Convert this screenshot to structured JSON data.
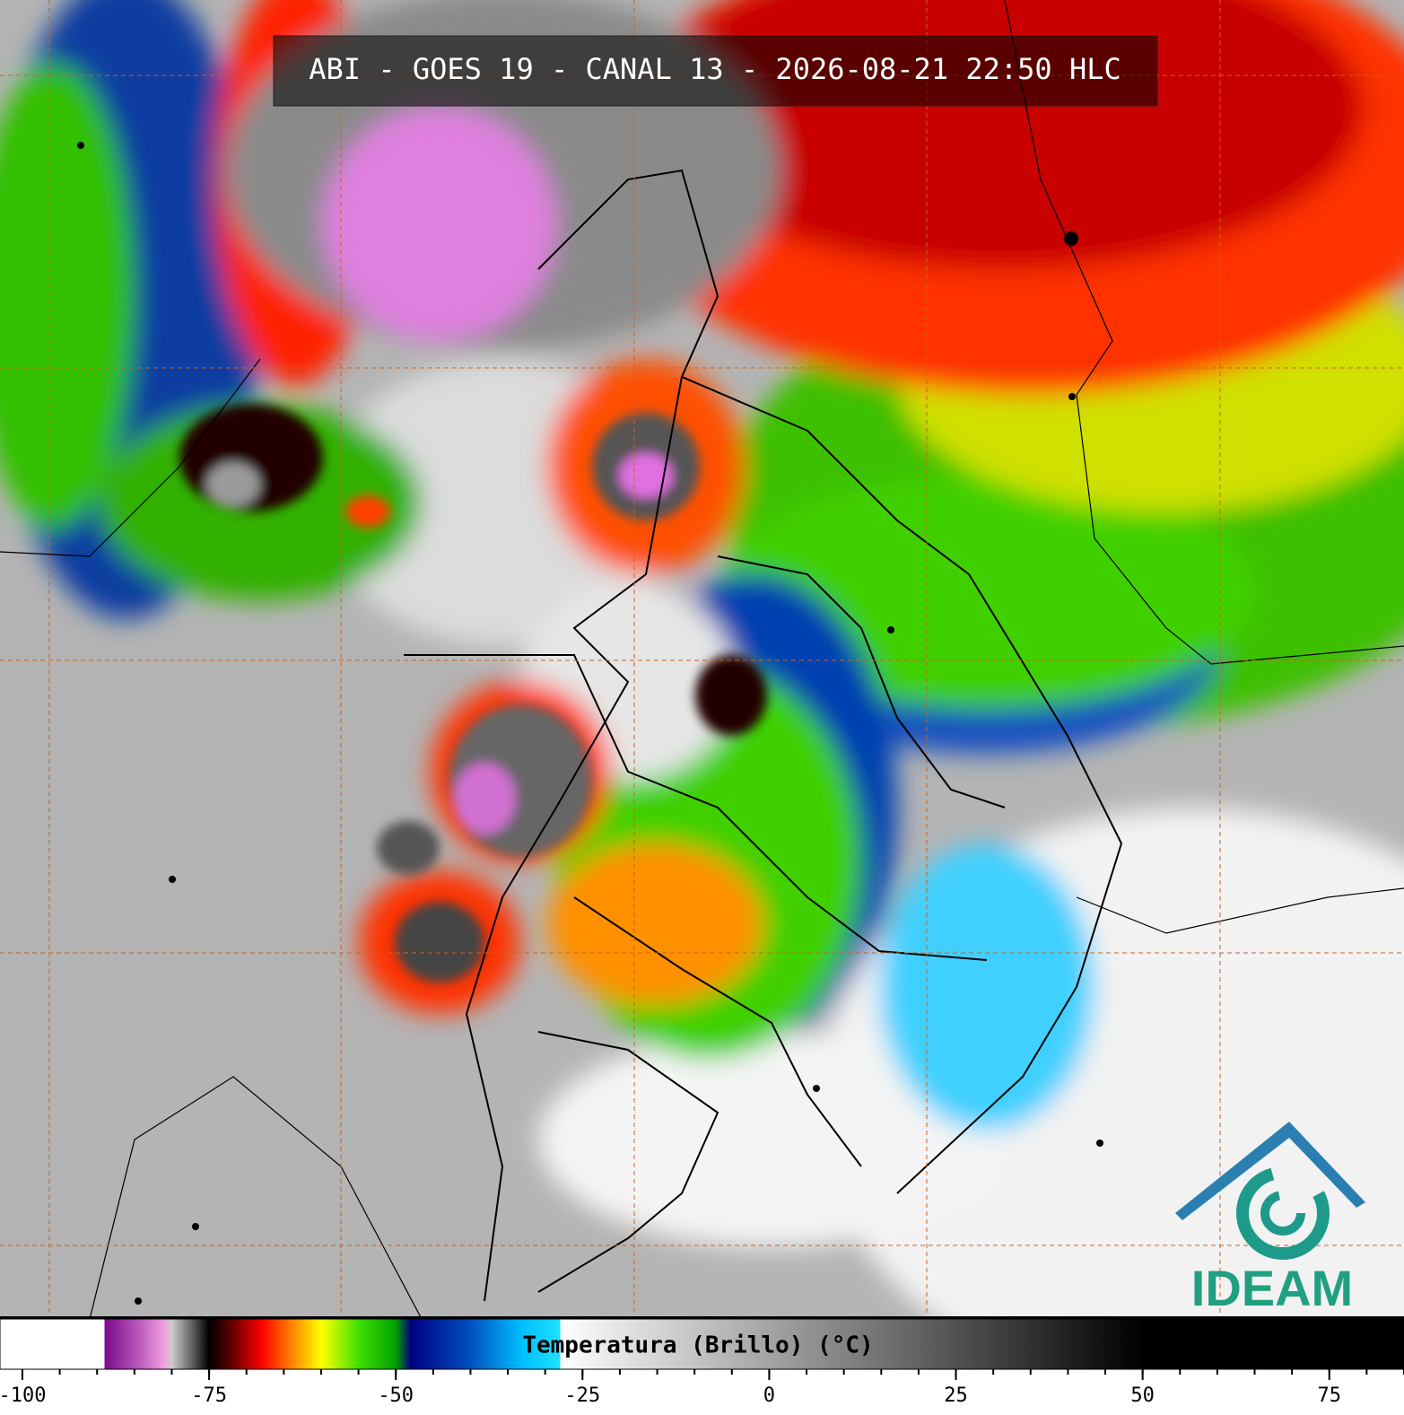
{
  "title": "ABI - GOES 19 - CANAL 13 - 2026-08-21 22:50 HLC",
  "logo": "IDEAM",
  "colorbar": {
    "label": "Temperatura (Brillo) (°C)",
    "range": [
      -103,
      85
    ],
    "ticks": [
      -100,
      -75,
      -50,
      -25,
      0,
      25,
      50,
      75
    ],
    "minor_tick_step": 5,
    "stops": [
      [
        -103,
        "#ffffff"
      ],
      [
        -89,
        "#ffffff"
      ],
      [
        -89,
        "#7a0a8a"
      ],
      [
        -84,
        "#c060c0"
      ],
      [
        -81,
        "#f0a0e0"
      ],
      [
        -80,
        "#cccccc"
      ],
      [
        -77,
        "#555555"
      ],
      [
        -75,
        "#000000"
      ],
      [
        -72,
        "#600000"
      ],
      [
        -68,
        "#ff0000"
      ],
      [
        -64,
        "#ff8000"
      ],
      [
        -60,
        "#ffff00"
      ],
      [
        -55,
        "#40e000"
      ],
      [
        -50,
        "#00a000"
      ],
      [
        -48,
        "#000080"
      ],
      [
        -40,
        "#0050c0"
      ],
      [
        -33,
        "#00c0ff"
      ],
      [
        -28,
        "#20e0ff"
      ],
      [
        -28,
        "#ffffff"
      ],
      [
        50,
        "#000000"
      ],
      [
        85,
        "#000000"
      ]
    ]
  }
}
